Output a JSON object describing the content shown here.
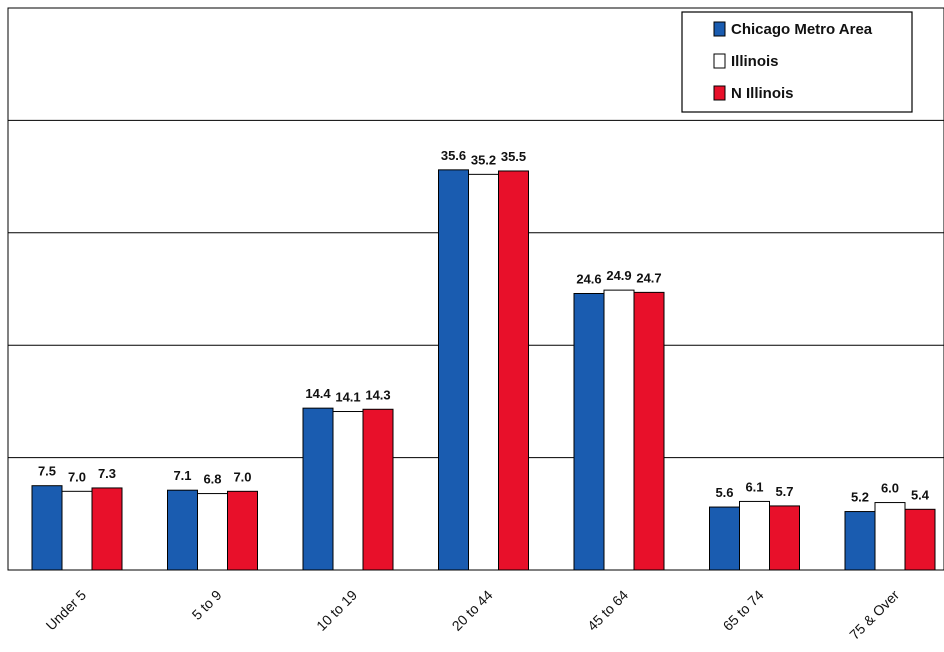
{
  "chart_data": {
    "type": "bar",
    "title": "",
    "xlabel": "",
    "ylabel": "",
    "categories": [
      "Under 5",
      "5 to 9",
      "10 to 19",
      "20 to 44",
      "45 to 64",
      "65 to 74",
      "75 & Over"
    ],
    "series": [
      {
        "name": "Chicago Metro Area",
        "color": "#1a5cb0",
        "values": [
          7.5,
          7.1,
          14.4,
          35.6,
          24.6,
          5.6,
          5.2
        ],
        "labels": [
          "7.5",
          "7.1",
          "14.4",
          "35.6",
          "24.6",
          "5.6",
          "5.2"
        ]
      },
      {
        "name": "Illinois",
        "color": "#ffffff",
        "values": [
          7.0,
          6.8,
          14.1,
          35.2,
          24.9,
          6.1,
          6.0
        ],
        "labels": [
          "7.0",
          "6.8",
          "14.1",
          "35.2",
          "24.9",
          "6.1",
          "6.0"
        ]
      },
      {
        "name": "N Illinois",
        "color": "#e8102a",
        "values": [
          7.3,
          7.0,
          14.3,
          35.5,
          24.7,
          5.7,
          5.4
        ],
        "labels": [
          "7.3",
          "7.0",
          "14.3",
          "35.5",
          "24.7",
          "5.7",
          "5.4"
        ]
      }
    ],
    "ylim": [
      0,
      50
    ],
    "grid_step": 10,
    "grid": true,
    "legend": "top-right"
  }
}
